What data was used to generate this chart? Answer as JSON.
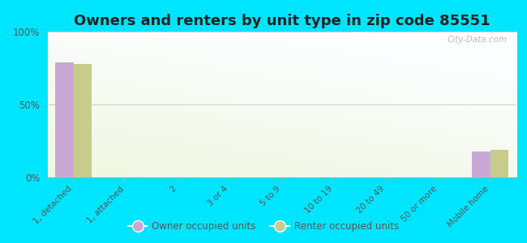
{
  "title": "Owners and renters by unit type in zip code 85551",
  "categories": [
    "1, detached",
    "1, attached",
    "2",
    "3 or 4",
    "5 to 9",
    "10 to 19",
    "20 to 49",
    "50 or more",
    "Mobile home"
  ],
  "owner_values": [
    79,
    0,
    0,
    0,
    0,
    0,
    0,
    0,
    18
  ],
  "renter_values": [
    78,
    0,
    0,
    0,
    0,
    0,
    0,
    0,
    19
  ],
  "owner_color": "#c9a8d4",
  "renter_color": "#c8cc8a",
  "background_color": "#00e5ff",
  "yticks": [
    0,
    50,
    100
  ],
  "ylim": [
    0,
    100
  ],
  "bar_width": 0.35,
  "title_fontsize": 13,
  "watermark": "City-Data.com"
}
